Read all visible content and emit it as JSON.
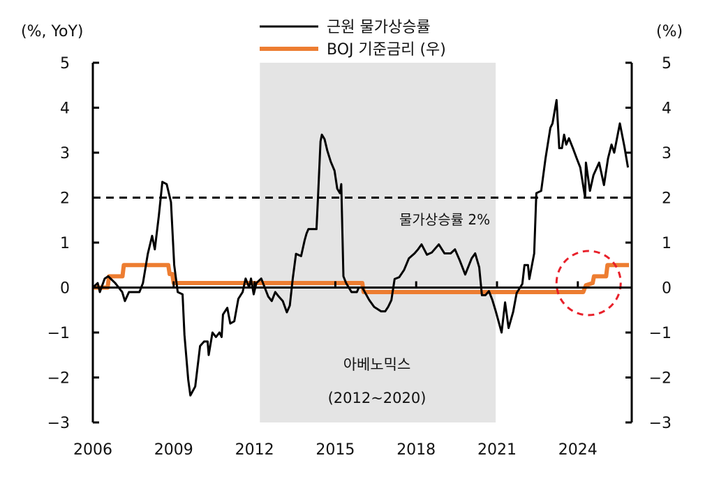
{
  "chart_data": {
    "type": "line",
    "title": "",
    "ylabel_left": "(%, YoY)",
    "ylabel_right": "(%)",
    "xlim": [
      2006,
      2026
    ],
    "ylim": [
      -3,
      5
    ],
    "ylim_right": [
      -3,
      5
    ],
    "x_ticks": [
      "2006",
      "2009",
      "2012",
      "2015",
      "2018",
      "2021",
      "2024"
    ],
    "x_tick_values": [
      2006,
      2009,
      2012,
      2015,
      2018,
      2021,
      2024
    ],
    "y_ticks": [
      "5",
      "4",
      "3",
      "2",
      "1",
      "0",
      "−1",
      "−2",
      "−3"
    ],
    "y_tick_values": [
      5,
      4,
      3,
      2,
      1,
      0,
      -1,
      -2,
      -3
    ],
    "legend_position": "top-center",
    "colors": {
      "core": "#000000",
      "boj": "#ED7D31",
      "shade": "#E4E4E4",
      "circle": "#E8202A"
    },
    "shade": {
      "range": [
        2012.2,
        2020.95
      ],
      "label": "아베노믹스",
      "sublabel": "(2012~2020)"
    },
    "reference_line": {
      "value": 2,
      "label": "물가상승률 2%",
      "style": "dashed"
    },
    "highlight_circle": {
      "center": [
        2024.4,
        0.1
      ]
    },
    "series": [
      {
        "name": "근원 물가상승률",
        "axis": "left",
        "points": [
          [
            2006.0,
            0.0
          ],
          [
            2006.18,
            0.1
          ],
          [
            2006.26,
            -0.1
          ],
          [
            2006.44,
            0.2
          ],
          [
            2006.57,
            0.25
          ],
          [
            2006.83,
            0.1
          ],
          [
            2007.09,
            -0.1
          ],
          [
            2007.19,
            -0.3
          ],
          [
            2007.34,
            -0.1
          ],
          [
            2007.73,
            -0.1
          ],
          [
            2007.86,
            0.1
          ],
          [
            2008.04,
            0.75
          ],
          [
            2008.2,
            1.15
          ],
          [
            2008.25,
            1.0
          ],
          [
            2008.3,
            0.85
          ],
          [
            2008.45,
            1.6
          ],
          [
            2008.58,
            2.35
          ],
          [
            2008.74,
            2.3
          ],
          [
            2008.9,
            1.9
          ],
          [
            2009.02,
            0.5
          ],
          [
            2009.15,
            -0.1
          ],
          [
            2009.33,
            -0.15
          ],
          [
            2009.4,
            -1.05
          ],
          [
            2009.54,
            -2.05
          ],
          [
            2009.62,
            -2.4
          ],
          [
            2009.8,
            -2.2
          ],
          [
            2009.98,
            -1.3
          ],
          [
            2010.13,
            -1.2
          ],
          [
            2010.26,
            -1.2
          ],
          [
            2010.3,
            -1.5
          ],
          [
            2010.44,
            -1.0
          ],
          [
            2010.57,
            -1.1
          ],
          [
            2010.7,
            -1.0
          ],
          [
            2010.78,
            -1.1
          ],
          [
            2010.83,
            -0.6
          ],
          [
            2010.99,
            -0.45
          ],
          [
            2011.1,
            -0.8
          ],
          [
            2011.25,
            -0.75
          ],
          [
            2011.4,
            -0.25
          ],
          [
            2011.56,
            -0.1
          ],
          [
            2011.67,
            0.2
          ],
          [
            2011.8,
            0.0
          ],
          [
            2011.87,
            0.2
          ],
          [
            2011.97,
            -0.15
          ],
          [
            2012.07,
            0.1
          ],
          [
            2012.25,
            0.2
          ],
          [
            2012.38,
            0.0
          ],
          [
            2012.51,
            -0.2
          ],
          [
            2012.64,
            -0.3
          ],
          [
            2012.77,
            -0.1
          ],
          [
            2012.9,
            -0.2
          ],
          [
            2013.05,
            -0.3
          ],
          [
            2013.2,
            -0.55
          ],
          [
            2013.31,
            -0.4
          ],
          [
            2013.42,
            0.2
          ],
          [
            2013.54,
            0.75
          ],
          [
            2013.73,
            0.7
          ],
          [
            2013.86,
            1.05
          ],
          [
            2013.93,
            1.2
          ],
          [
            2014.0,
            1.3
          ],
          [
            2014.3,
            1.3
          ],
          [
            2014.36,
            2.05
          ],
          [
            2014.45,
            3.25
          ],
          [
            2014.5,
            3.4
          ],
          [
            2014.6,
            3.3
          ],
          [
            2014.7,
            3.05
          ],
          [
            2014.83,
            2.8
          ],
          [
            2014.97,
            2.6
          ],
          [
            2015.07,
            2.2
          ],
          [
            2015.17,
            2.1
          ],
          [
            2015.22,
            2.3
          ],
          [
            2015.3,
            0.25
          ],
          [
            2015.4,
            0.1
          ],
          [
            2015.6,
            -0.1
          ],
          [
            2015.8,
            -0.1
          ],
          [
            2015.87,
            0.0
          ],
          [
            2016.0,
            0.0
          ],
          [
            2016.26,
            -0.28
          ],
          [
            2016.44,
            -0.43
          ],
          [
            2016.7,
            -0.53
          ],
          [
            2016.85,
            -0.53
          ],
          [
            2016.96,
            -0.43
          ],
          [
            2017.08,
            -0.28
          ],
          [
            2017.2,
            0.19
          ],
          [
            2017.37,
            0.23
          ],
          [
            2017.55,
            0.39
          ],
          [
            2017.73,
            0.65
          ],
          [
            2017.94,
            0.76
          ],
          [
            2018.07,
            0.85
          ],
          [
            2018.2,
            0.96
          ],
          [
            2018.4,
            0.73
          ],
          [
            2018.58,
            0.78
          ],
          [
            2018.84,
            0.96
          ],
          [
            2019.05,
            0.76
          ],
          [
            2019.28,
            0.76
          ],
          [
            2019.44,
            0.85
          ],
          [
            2019.62,
            0.6
          ],
          [
            2019.82,
            0.29
          ],
          [
            2020.06,
            0.65
          ],
          [
            2020.19,
            0.76
          ],
          [
            2020.34,
            0.45
          ],
          [
            2020.44,
            -0.17
          ],
          [
            2020.57,
            -0.17
          ],
          [
            2020.7,
            -0.08
          ],
          [
            2020.83,
            -0.28
          ],
          [
            2020.96,
            -0.54
          ],
          [
            2021.17,
            -1.0
          ],
          [
            2021.3,
            -0.33
          ],
          [
            2021.43,
            -0.9
          ],
          [
            2021.6,
            -0.54
          ],
          [
            2021.73,
            -0.12
          ],
          [
            2021.94,
            0.08
          ],
          [
            2022.02,
            0.5
          ],
          [
            2022.15,
            0.5
          ],
          [
            2022.2,
            0.19
          ],
          [
            2022.38,
            0.76
          ],
          [
            2022.46,
            2.1
          ],
          [
            2022.64,
            2.15
          ],
          [
            2022.8,
            2.87
          ],
          [
            2022.98,
            3.55
          ],
          [
            2023.06,
            3.65
          ],
          [
            2023.21,
            4.17
          ],
          [
            2023.31,
            3.1
          ],
          [
            2023.41,
            3.1
          ],
          [
            2023.49,
            3.4
          ],
          [
            2023.57,
            3.18
          ],
          [
            2023.67,
            3.32
          ],
          [
            2023.83,
            3.08
          ],
          [
            2023.96,
            2.87
          ],
          [
            2024.09,
            2.67
          ],
          [
            2024.27,
            2.0
          ],
          [
            2024.3,
            2.78
          ],
          [
            2024.45,
            2.15
          ],
          [
            2024.58,
            2.5
          ],
          [
            2024.79,
            2.78
          ],
          [
            2024.97,
            2.28
          ],
          [
            2025.12,
            2.87
          ],
          [
            2025.25,
            3.18
          ],
          [
            2025.35,
            3.0
          ],
          [
            2025.56,
            3.65
          ],
          [
            2025.73,
            3.13
          ],
          [
            2025.86,
            2.67
          ]
        ]
      },
      {
        "name": "BOJ 기준금리 (우)",
        "axis": "right",
        "step": true,
        "points": [
          [
            2006.0,
            0.0
          ],
          [
            2006.55,
            0.0
          ],
          [
            2006.6,
            0.25
          ],
          [
            2007.1,
            0.25
          ],
          [
            2007.15,
            0.5
          ],
          [
            2008.8,
            0.5
          ],
          [
            2008.85,
            0.3
          ],
          [
            2008.95,
            0.3
          ],
          [
            2009.0,
            0.1
          ],
          [
            2016.0,
            0.1
          ],
          [
            2016.05,
            -0.1
          ],
          [
            2024.2,
            -0.1
          ],
          [
            2024.3,
            0.05
          ],
          [
            2024.55,
            0.1
          ],
          [
            2024.6,
            0.25
          ],
          [
            2025.05,
            0.25
          ],
          [
            2025.1,
            0.5
          ],
          [
            2025.9,
            0.5
          ]
        ]
      }
    ]
  }
}
